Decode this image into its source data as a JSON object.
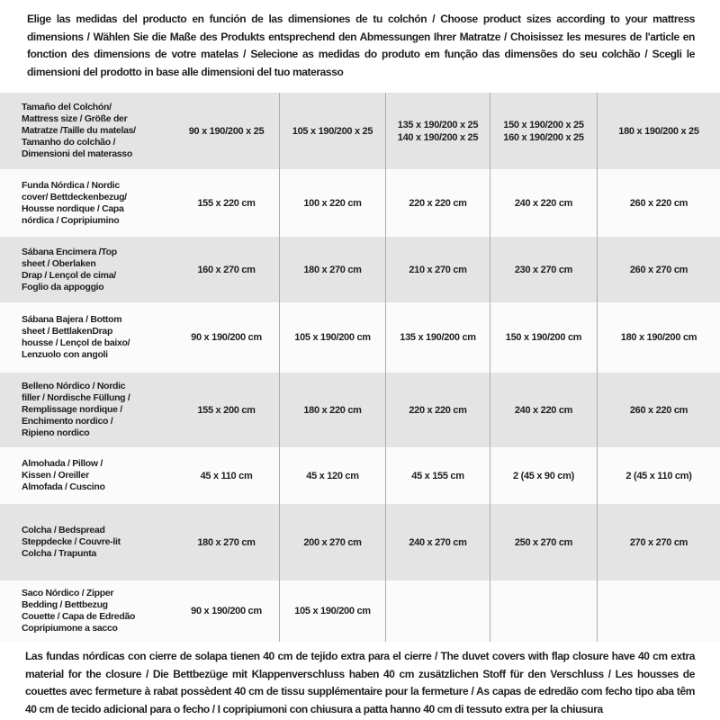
{
  "colors": {
    "text": "#1f1f1f",
    "row_shade": "#e4e4e4",
    "row_light": "#fbfbfb",
    "divider": "#adadad"
  },
  "page": {
    "intro": "Elige las medidas del producto en función de las dimensiones de tu colchón / Choose product sizes according to your mattress dimensions / Wählen Sie die Maße des Produkts entsprechend den Abmessungen Ihrer Matratze / Choisissez les mesures de l'article en fonction des dimensions de votre matelas / Selecione as medidas do produto em função das dimensões do seu colchão / Scegli le dimensioni del prodotto in base alle dimensioni del tuo materasso",
    "footnote": "Las fundas nórdicas con cierre de solapa tienen 40 cm de tejido extra para el cierre  / The duvet covers with flap closure have 40 cm extra material for the closure / Die Bettbezüge mit Klappenverschluss haben 40 cm zusätzlichen Stoff für den Verschluss / Les housses de couettes avec fermeture à rabat possèdent 40 cm de tissu supplémentaire pour la fermeture / As capas de edredão com fecho tipo aba têm 40 cm de tecido adicional para o fecho / I copripiumoni con chiusura a patta hanno 40 cm di tessuto extra per la chiusura"
  },
  "table": {
    "rows": [
      {
        "label": "Tamaño del Colchón/\nMattress size / Größe der\nMatratze /Taille du matelas/\nTamanho do colchão /\nDimensioni del materasso",
        "values": [
          "90 x 190/200 x 25",
          "105 x 190/200 x 25",
          "135 x 190/200 x 25\n140 x 190/200 x 25",
          "150 x 190/200 x 25\n160 x 190/200 x 25",
          "180 x 190/200 x 25"
        ]
      },
      {
        "label": "Funda Nórdica /  Nordic\ncover/ Bettdeckenbezug/\nHousse nordique  / Capa\nnórdica / Copripiumino",
        "values": [
          "155 x 220 cm",
          "100 x 220 cm",
          "220 x 220 cm",
          "240 x 220 cm",
          "260 x 220 cm"
        ]
      },
      {
        "label": "Sábana Encimera /Top\nsheet / Oberlaken\nDrap / Lençol de cima/\nFoglio da appoggio",
        "values": [
          "160 x 270 cm",
          "180 x 270 cm",
          "210 x 270 cm",
          "230 x 270 cm",
          "260 x 270 cm"
        ]
      },
      {
        "label": "Sábana Bajera / Bottom\nsheet / BettlakenDrap\nhousse / Lençol de baixo/\nLenzuolo con angoli",
        "values": [
          "90 x 190/200 cm",
          "105 x 190/200 cm",
          "135 x 190/200 cm",
          "150 x 190/200 cm",
          "180 x 190/200 cm"
        ]
      },
      {
        "label": "Belleno Nórdico / Nordic\nfiller / Nordische Füllung /\nRemplissage nordique /\nEnchimento nordico /\nRipieno nordico",
        "values": [
          "155 x 200 cm",
          "180 x 220 cm",
          "220 x 220 cm",
          "240 x 220 cm",
          "260 x 220 cm"
        ]
      },
      {
        "label": "Almohada  / Pillow /\nKissen / Oreiller\nAlmofada / Cuscino",
        "values": [
          "45 x 110 cm",
          "45 x 120 cm",
          "45 x 155 cm",
          "2 (45 x 90 cm)",
          "2 (45 x 110 cm)"
        ]
      },
      {
        "label": "Colcha / Bedspread\nSteppdecke / Couvre-lit\nColcha / Trapunta",
        "values": [
          "180 x 270 cm",
          "200 x 270 cm",
          "240 x 270 cm",
          "250 x 270 cm",
          "270 x 270 cm"
        ]
      },
      {
        "label": "Saco Nórdico / Zipper\nBedding / Bettbezug\nCouette  / Capa de Edredão\nCopripiumone a sacco",
        "values": [
          "90 x 190/200 cm",
          "105 x 190/200 cm",
          "",
          "",
          ""
        ]
      }
    ]
  }
}
